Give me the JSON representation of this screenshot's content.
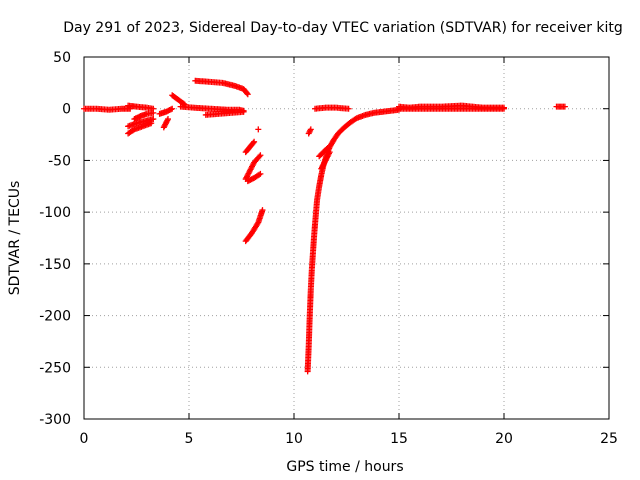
{
  "chart_data": {
    "type": "scatter",
    "title": "Day 291 of 2023, Sidereal Day-to-day VTEC variation (SDTVAR) for receiver kitg",
    "xlabel": "GPS time / hours",
    "ylabel": "SDTVAR / TECUs",
    "xlim": [
      0,
      25
    ],
    "ylim": [
      -300,
      50
    ],
    "xticks": [
      0,
      5,
      10,
      15,
      20,
      25
    ],
    "yticks": [
      50,
      0,
      -50,
      -100,
      -150,
      -200,
      -250,
      -300
    ],
    "grid": true,
    "marker": "+",
    "color": "#ff0000",
    "series": [
      {
        "name": "SDTVAR",
        "segments": [
          {
            "x": [
              0.0,
              0.6,
              1.2,
              1.8,
              2.2
            ],
            "y": [
              0,
              0,
              -1,
              0,
              0
            ]
          },
          {
            "x": [
              2.1,
              2.5,
              3.0,
              3.3
            ],
            "y": [
              3,
              2,
              1,
              0
            ]
          },
          {
            "x": [
              2.1,
              2.4,
              2.8,
              3.2
            ],
            "y": [
              -24,
              -20,
              -17,
              -14
            ]
          },
          {
            "x": [
              2.1,
              2.5,
              2.9,
              3.3
            ],
            "y": [
              -17,
              -14,
              -12,
              -10
            ]
          },
          {
            "x": [
              2.4,
              2.7,
              3.0,
              3.3
            ],
            "y": [
              -10,
              -7,
              -5,
              -4
            ]
          },
          {
            "x": [
              3.6,
              3.9,
              4.2
            ],
            "y": [
              -5,
              -3,
              0
            ]
          },
          {
            "x": [
              3.8,
              3.9,
              4.0
            ],
            "y": [
              -18,
              -14,
              -10
            ]
          },
          {
            "x": [
              4.2,
              4.4,
              4.6,
              4.8
            ],
            "y": [
              13,
              10,
              7,
              4
            ]
          },
          {
            "x": [
              4.6,
              5.2,
              6.0,
              6.8,
              7.4,
              7.6
            ],
            "y": [
              2,
              1,
              0,
              -1,
              -1,
              -2
            ]
          },
          {
            "x": [
              5.8,
              6.4,
              7.0,
              7.6
            ],
            "y": [
              -6,
              -5,
              -4,
              -3
            ]
          },
          {
            "x": [
              5.3,
              6.0,
              6.6,
              7.2,
              7.6,
              7.8
            ],
            "y": [
              27,
              26,
              25,
              22,
              19,
              14
            ]
          },
          {
            "x": [
              7.7,
              7.9,
              8.1
            ],
            "y": [
              -42,
              -37,
              -32
            ]
          },
          {
            "x": [
              8.3
            ],
            "y": [
              -20
            ]
          },
          {
            "x": [
              7.7,
              7.9,
              8.1,
              8.4
            ],
            "y": [
              -68,
              -60,
              -52,
              -45
            ]
          },
          {
            "x": [
              7.8,
              8.1,
              8.4
            ],
            "y": [
              -70,
              -67,
              -63
            ]
          },
          {
            "x": [
              7.7,
              8.0,
              8.3,
              8.5
            ],
            "y": [
              -128,
              -120,
              -110,
              -98
            ]
          },
          {
            "x": [
              10.7,
              10.8
            ],
            "y": [
              -24,
              -20
            ]
          },
          {
            "x": [
              10.65,
              10.7,
              10.75,
              10.8,
              10.85,
              10.9,
              10.95,
              11.0,
              11.05,
              11.1,
              11.2,
              11.3,
              11.4,
              11.55,
              11.7,
              11.9,
              12.1,
              12.4,
              12.7,
              13.0,
              13.4,
              13.8,
              14.2,
              14.6,
              15.0
            ],
            "y": [
              -254,
              -230,
              -200,
              -175,
              -155,
              -140,
              -125,
              -112,
              -100,
              -88,
              -75,
              -64,
              -55,
              -45,
              -37,
              -30,
              -24,
              -18,
              -13,
              -9,
              -6,
              -4,
              -3,
              -2,
              -1
            ]
          },
          {
            "x": [
              11.3,
              11.5,
              11.7
            ],
            "y": [
              -58,
              -50,
              -42
            ]
          },
          {
            "x": [
              11.2,
              11.4,
              11.6
            ],
            "y": [
              -46,
              -42,
              -38
            ]
          },
          {
            "x": [
              11.0,
              11.5,
              12.0,
              12.6
            ],
            "y": [
              0,
              1,
              1,
              0
            ]
          },
          {
            "x": [
              15.0,
              15.5,
              16.0,
              17.0,
              18.0,
              18.5,
              19.0,
              20.0
            ],
            "y": [
              2,
              1,
              2,
              2,
              3,
              2,
              1,
              1
            ]
          },
          {
            "x": [
              15.0,
              16.0,
              17.0,
              18.0,
              19.0,
              20.0
            ],
            "y": [
              0,
              0,
              0,
              0,
              0,
              0
            ]
          },
          {
            "x": [
              22.5,
              22.9
            ],
            "y": [
              2,
              2
            ]
          }
        ]
      }
    ]
  }
}
